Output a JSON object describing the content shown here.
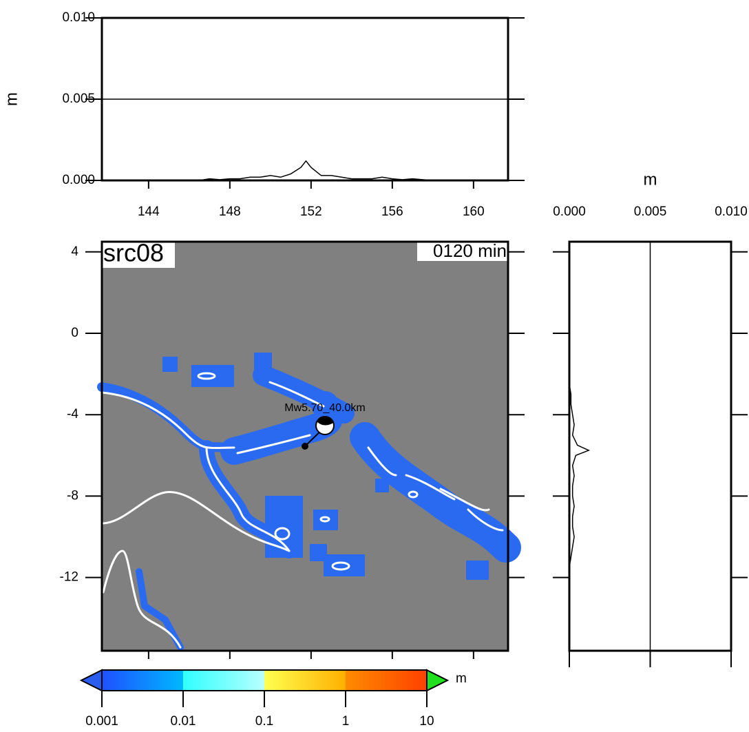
{
  "chart_data": [
    {
      "type": "line",
      "value_axis": "y",
      "ylabel": "m",
      "xlim": [
        141.7,
        161.7
      ],
      "xticks": [
        144,
        148,
        152,
        156,
        160
      ],
      "ylim": [
        0,
        0.01
      ],
      "yticks": [
        {
          "value": 0,
          "label": "0.000"
        },
        {
          "value": 0.005,
          "label": "0.005"
        },
        {
          "value": 0.01,
          "label": "0.010"
        }
      ],
      "grid": true,
      "color": "#000000",
      "x": [
        145.5,
        146,
        146.5,
        147,
        147.5,
        148,
        148.5,
        149,
        149.5,
        150,
        150.5,
        151,
        151.5,
        151.75,
        152,
        152.5,
        153,
        153.5,
        154,
        154.5,
        155,
        155.5,
        156,
        156.5,
        157,
        157.5,
        158
      ],
      "values": [
        0,
        0,
        0,
        0.0001,
        5e-05,
        0.0001,
        0.0001,
        0.0002,
        0.0002,
        0.0003,
        0.0002,
        0.0004,
        0.0008,
        0.0012,
        0.0008,
        0.0003,
        0.0003,
        0.0002,
        0.0001,
        0.0001,
        0.0001,
        0.0002,
        0.0001,
        5e-05,
        0.0001,
        5e-05,
        0
      ]
    },
    {
      "type": "map",
      "xlim": [
        141.7,
        161.7
      ],
      "xticks": [
        144,
        148,
        152,
        156,
        160
      ],
      "ylim": [
        -15.6,
        4.5
      ],
      "yticks": [
        4,
        0,
        -4,
        -8,
        -12
      ],
      "title": "src08",
      "time_label": "0120 min",
      "event_label": "Mw5.70_40.0km"
    },
    {
      "type": "line",
      "value_axis": "x",
      "xlabel": "m",
      "xlim": [
        0,
        0.01
      ],
      "xticks": [
        {
          "value": 0,
          "label": "0.000"
        },
        {
          "value": 0.005,
          "label": "0.005"
        },
        {
          "value": 0.01,
          "label": "0.010"
        }
      ],
      "ylim": [
        -15.6,
        4.5
      ],
      "yticks": [
        4,
        0,
        -4,
        -8,
        -12
      ],
      "grid": true,
      "color": "#000000",
      "y": [
        -2.5,
        -3,
        -3.5,
        -4,
        -4.5,
        -5,
        -5.5,
        -5.75,
        -6,
        -6.5,
        -7,
        -7.5,
        -8,
        -8.5,
        -9,
        -9.5,
        -10,
        -10.5,
        -11,
        -11.5
      ],
      "values": [
        0,
        0.0001,
        0.0001,
        0.0002,
        0.0003,
        0.0002,
        0.0005,
        0.0012,
        0.0004,
        0.0002,
        0.0003,
        0.0002,
        0.0002,
        0.0003,
        0.0002,
        0.0002,
        0.0003,
        0.0002,
        0.0001,
        0
      ]
    },
    {
      "type": "colorbar",
      "scale": "log",
      "label": "m",
      "ticks": [
        0.001,
        0.01,
        0.1,
        1,
        10
      ],
      "segments": [
        [
          "#1e50ff",
          "#00b8ff"
        ],
        [
          "#30ffff",
          "#b8ffff"
        ],
        [
          "#ffff50",
          "#ffb000"
        ],
        [
          "#ff8c00",
          "#ff4000"
        ],
        [
          "#ff5a00",
          "#ff0000"
        ]
      ],
      "under_color": "#2a5cf0",
      "over_color": "#20e020"
    }
  ]
}
